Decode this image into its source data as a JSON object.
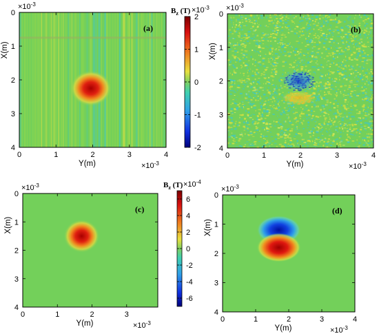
{
  "colors": {
    "background": "#73d05a",
    "positive": "#b01010",
    "negative": "#1030c0",
    "noise_yellow": "#d8e040",
    "noise_cyan": "#40c8c8"
  },
  "colorbars": {
    "a": {
      "label": "B",
      "label_sub": "z",
      "label_unit": " (T)",
      "exponent": "×10",
      "exponent_power": "-3",
      "range": [
        -2,
        2
      ],
      "ticks": [
        "2",
        "1",
        "0",
        "-1",
        "-2"
      ]
    },
    "c": {
      "label": "B",
      "label_sub": "z",
      "label_unit": " (T)",
      "exponent": "×10",
      "exponent_power": "-4",
      "range": [
        -7,
        7
      ],
      "ticks": [
        "6",
        "4",
        "2",
        "0",
        "-2",
        "-4",
        "-6"
      ]
    }
  },
  "chart_data": [
    {
      "panel": "(a)",
      "type": "heatmap",
      "xlabel": "Y(m)",
      "ylabel": "X(m)",
      "x_exponent": "×10",
      "x_exponent_power": "-3",
      "y_exponent": "×10",
      "y_exponent_power": "-3",
      "xlim": [
        0,
        4
      ],
      "ylim": [
        4,
        0
      ],
      "x_ticks": [
        "0",
        "1",
        "2",
        "3",
        "4"
      ],
      "y_ticks": [
        "0",
        "1",
        "2",
        "3",
        "4"
      ],
      "features": [
        {
          "kind": "positive-spot",
          "x": 1.95,
          "y": 2.25,
          "peak": 2.0
        }
      ],
      "noise": "vertical-stripes"
    },
    {
      "panel": "(b)",
      "type": "heatmap",
      "xlabel": "Y(m)",
      "ylabel": "X(m)",
      "x_exponent": "×10",
      "x_exponent_power": "-3",
      "y_exponent": "×10",
      "y_exponent_power": "-3",
      "xlim": [
        0,
        4
      ],
      "ylim": [
        4,
        0
      ],
      "x_ticks": [
        "0",
        "1",
        "2",
        "3",
        "4"
      ],
      "y_ticks": [
        "0",
        "1",
        "2",
        "3",
        "4"
      ],
      "features": [
        {
          "kind": "negative-lobe",
          "x": 1.95,
          "y": 2.0
        },
        {
          "kind": "positive-lobe",
          "x": 1.95,
          "y": 2.5
        }
      ],
      "noise": "speckle"
    },
    {
      "panel": "(c)",
      "type": "heatmap",
      "xlabel": "Y(m)",
      "ylabel": "X(m)",
      "x_exponent": "×10",
      "x_exponent_power": "-3",
      "y_exponent": "×10",
      "y_exponent_power": "-3",
      "xlim": [
        0,
        3.9
      ],
      "ylim": [
        4,
        0
      ],
      "x_ticks": [
        "0",
        "1",
        "2",
        "3"
      ],
      "y_ticks": [
        "0",
        "1",
        "2",
        "3",
        "4"
      ],
      "features": [
        {
          "kind": "positive-spot",
          "x": 1.7,
          "y": 1.5,
          "peak": 6.5
        }
      ],
      "noise": "none"
    },
    {
      "panel": "(d)",
      "type": "heatmap",
      "xlabel": "Y(m)",
      "ylabel": "X(m)",
      "x_exponent": "×10",
      "x_exponent_power": "-3",
      "y_exponent": "×10",
      "y_exponent_power": "-3",
      "xlim": [
        0,
        4
      ],
      "ylim": [
        4,
        0
      ],
      "x_ticks": [
        "0",
        "1",
        "2",
        "3",
        "4"
      ],
      "y_ticks": [
        "0",
        "1",
        "2",
        "3",
        "4"
      ],
      "features": [
        {
          "kind": "negative-lobe",
          "x": 1.7,
          "y": 1.2
        },
        {
          "kind": "positive-lobe",
          "x": 1.7,
          "y": 1.8
        }
      ],
      "noise": "none"
    }
  ]
}
